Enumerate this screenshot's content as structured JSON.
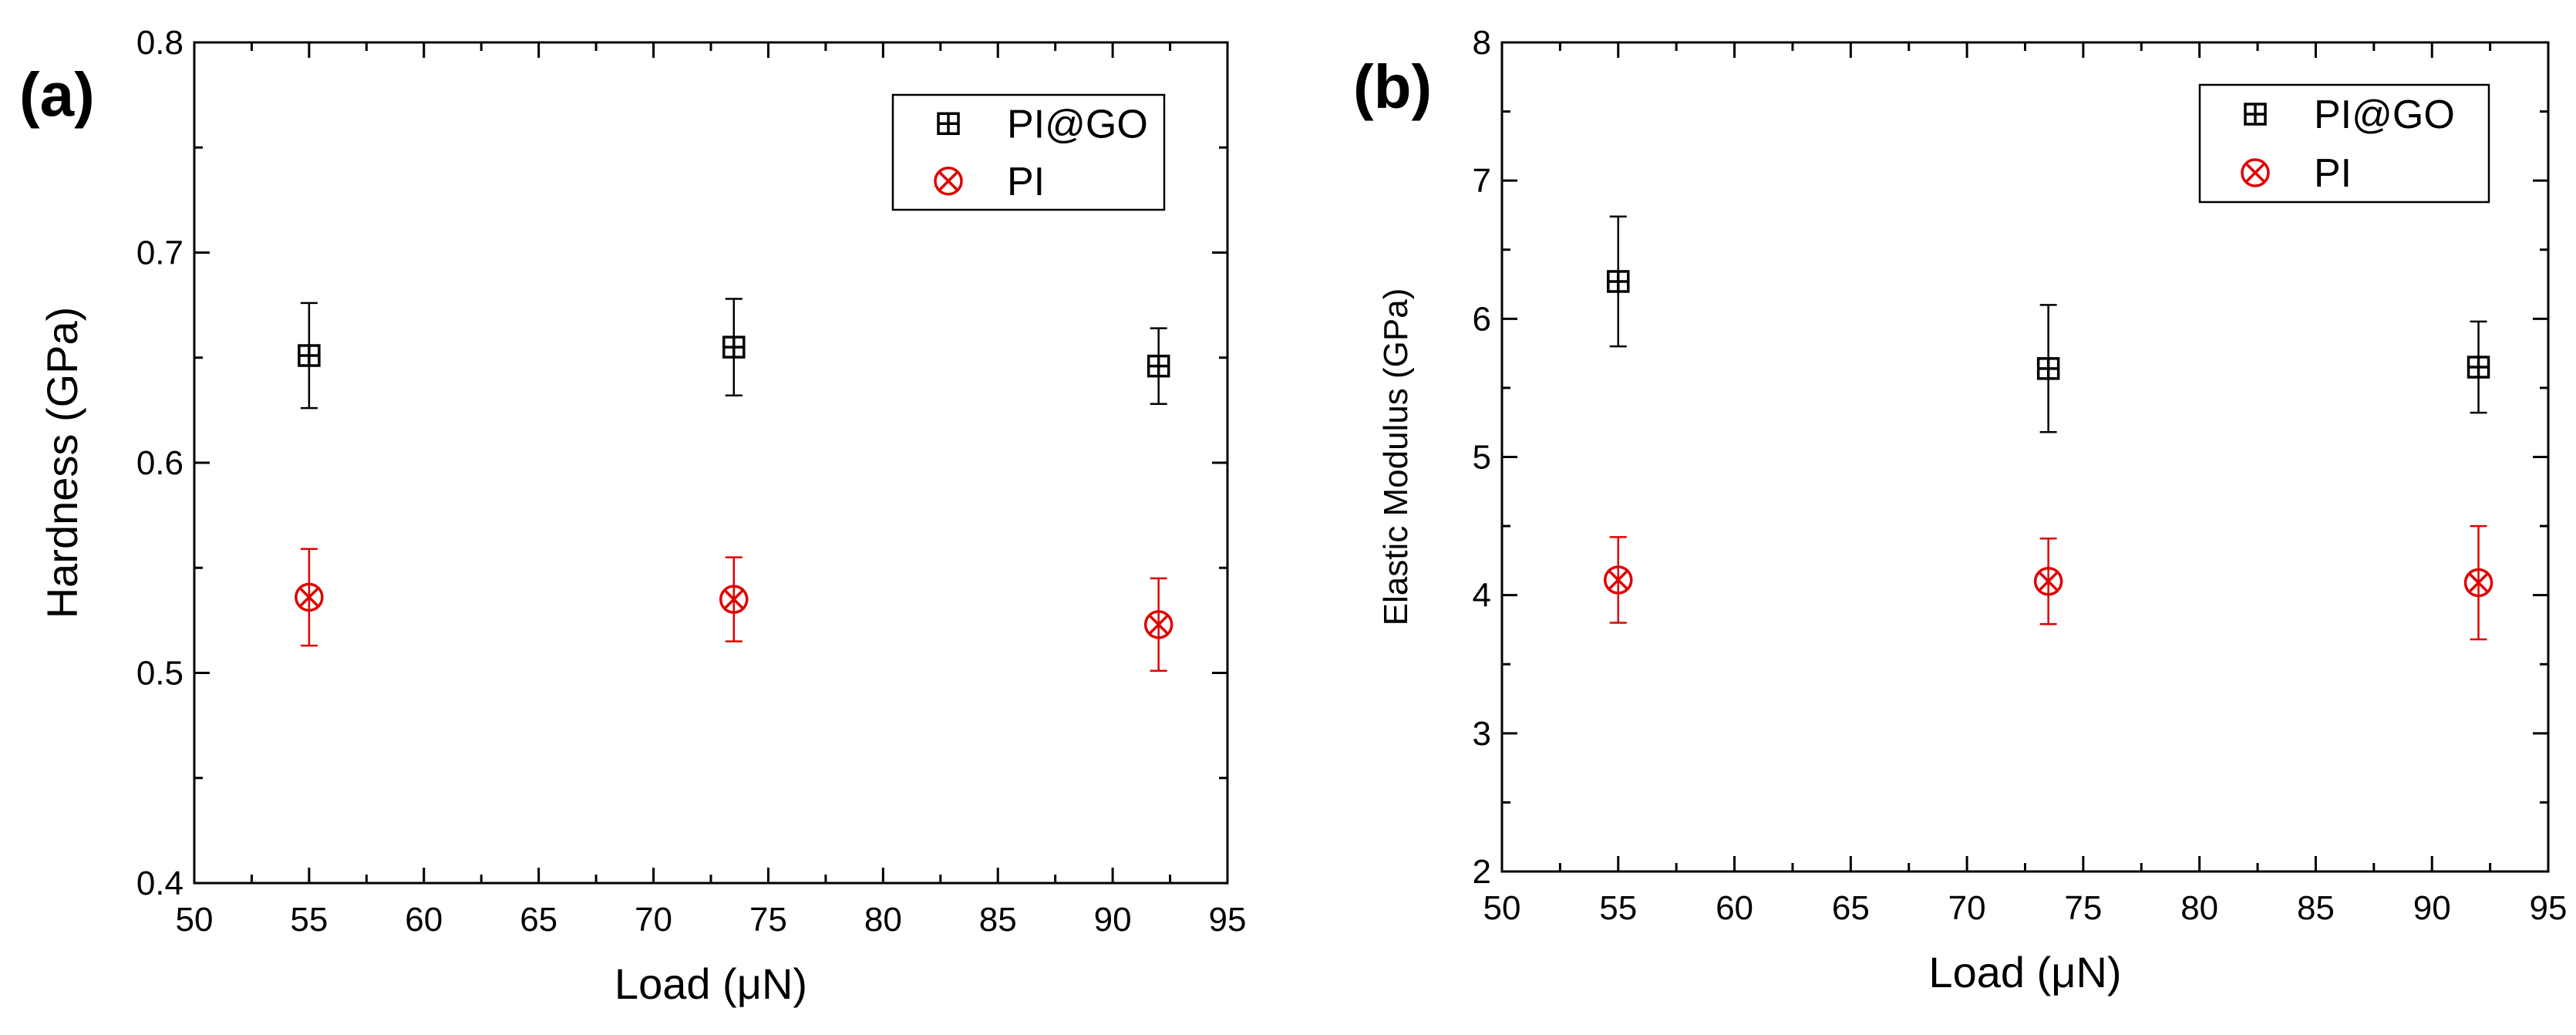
{
  "chart_data": [
    {
      "type": "scatter",
      "panel_label": "(a)",
      "xlabel": "Load (μN)",
      "ylabel": "Hardness (GPa)",
      "xlim": [
        50,
        95
      ],
      "ylim": [
        0.4,
        0.8
      ],
      "x_ticks": [
        50,
        55,
        60,
        65,
        70,
        75,
        80,
        85,
        90,
        95
      ],
      "y_ticks": [
        0.4,
        0.5,
        0.6,
        0.7,
        0.8
      ],
      "y_tick_labels": [
        "0.4",
        "0.5",
        "0.6",
        "0.7",
        "0.8"
      ],
      "legend_position": "top-right",
      "series": [
        {
          "name": "PI@GO",
          "color": "#000000",
          "marker": "square-plus",
          "x": [
            55,
            73.5,
            92
          ],
          "y": [
            0.651,
            0.655,
            0.646
          ],
          "err": [
            0.025,
            0.023,
            0.018
          ]
        },
        {
          "name": "PI",
          "color": "#e00000",
          "marker": "circle-x",
          "x": [
            55,
            73.5,
            92
          ],
          "y": [
            0.536,
            0.535,
            0.523
          ],
          "err": [
            0.023,
            0.02,
            0.022
          ]
        }
      ]
    },
    {
      "type": "scatter",
      "panel_label": "(b)",
      "xlabel": "Load (μN)",
      "ylabel": "Elastic Modulus (GPa)",
      "xlim": [
        50,
        95
      ],
      "ylim": [
        2,
        8
      ],
      "x_ticks": [
        50,
        55,
        60,
        65,
        70,
        75,
        80,
        85,
        90,
        95
      ],
      "y_ticks": [
        2,
        3,
        4,
        5,
        6,
        7,
        8
      ],
      "y_tick_labels": [
        "2",
        "3",
        "4",
        "5",
        "6",
        "7",
        "8"
      ],
      "legend_position": "top-right",
      "series": [
        {
          "name": "PI@GO",
          "color": "#000000",
          "marker": "square-plus",
          "x": [
            55,
            73.5,
            92
          ],
          "y": [
            6.27,
            5.64,
            5.65
          ],
          "err": [
            0.47,
            0.46,
            0.33
          ]
        },
        {
          "name": "PI",
          "color": "#e00000",
          "marker": "circle-x",
          "x": [
            55,
            73.5,
            92
          ],
          "y": [
            4.11,
            4.1,
            4.09
          ],
          "err": [
            0.31,
            0.31,
            0.41
          ]
        }
      ]
    }
  ]
}
